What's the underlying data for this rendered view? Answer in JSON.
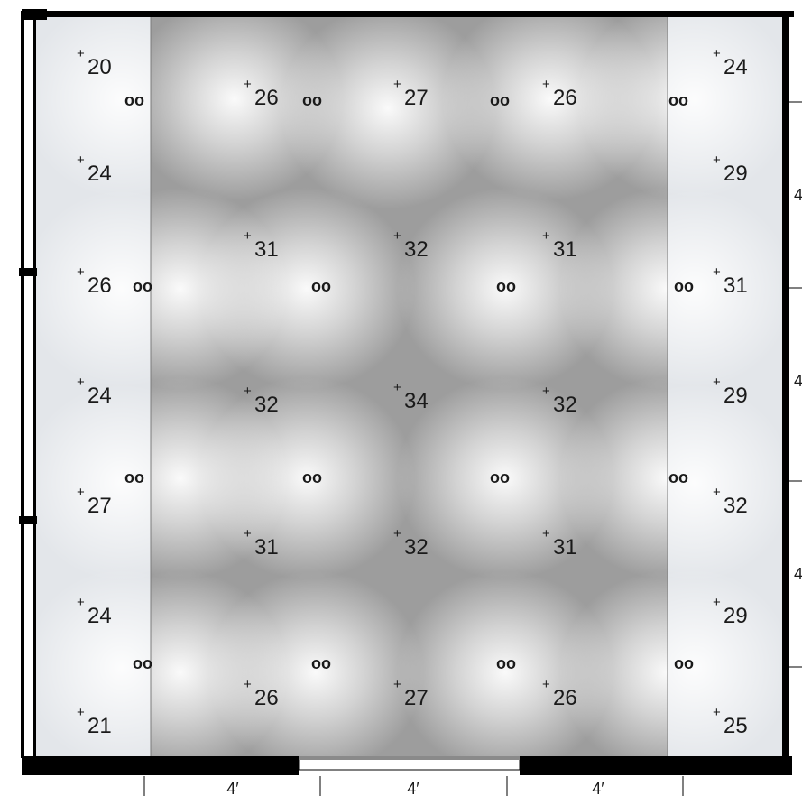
{
  "points": [
    {
      "value": "20",
      "col": 0,
      "row": 0
    },
    {
      "value": "26",
      "col": 1,
      "row": 0
    },
    {
      "value": "27",
      "col": 2,
      "row": 0
    },
    {
      "value": "26",
      "col": 3,
      "row": 0
    },
    {
      "value": "24",
      "col": 4,
      "row": 0
    },
    {
      "value": "24",
      "col": 0,
      "row": 1
    },
    {
      "value": "29",
      "col": 4,
      "row": 1
    },
    {
      "value": "31",
      "col": 1,
      "row": 1
    },
    {
      "value": "32",
      "col": 2,
      "row": 1
    },
    {
      "value": "31",
      "col": 3,
      "row": 1
    },
    {
      "value": "26",
      "col": 0,
      "row": 2
    },
    {
      "value": "31",
      "col": 4,
      "row": 2
    },
    {
      "value": "24",
      "col": 0,
      "row": 3
    },
    {
      "value": "32",
      "col": 1,
      "row": 3
    },
    {
      "value": "34",
      "col": 2,
      "row": 3
    },
    {
      "value": "32",
      "col": 3,
      "row": 3
    },
    {
      "value": "29",
      "col": 4,
      "row": 3
    },
    {
      "value": "27",
      "col": 0,
      "row": 4
    },
    {
      "value": "32",
      "col": 4,
      "row": 4
    },
    {
      "value": "31",
      "col": 1,
      "row": 4
    },
    {
      "value": "32",
      "col": 2,
      "row": 4
    },
    {
      "value": "31",
      "col": 3,
      "row": 4
    },
    {
      "value": "24",
      "col": 0,
      "row": 5
    },
    {
      "value": "29",
      "col": 4,
      "row": 5
    },
    {
      "value": "26",
      "col": 1,
      "row": 6
    },
    {
      "value": "27",
      "col": 2,
      "row": 6
    },
    {
      "value": "26",
      "col": 3,
      "row": 6
    },
    {
      "value": "21",
      "col": 0,
      "row": 7
    },
    {
      "value": "25",
      "col": 4,
      "row": 7
    }
  ],
  "fixture_symbol": "oo",
  "point_marker": "+",
  "dimensions": [
    "4′",
    "4′",
    "4′"
  ],
  "right_dimensions": [
    "4",
    "4",
    "4"
  ],
  "colors": {
    "center_field": "#9d9d9d",
    "side_panel": "#e3e6ea",
    "wall": "#000000",
    "text": "#1a1a1a"
  }
}
